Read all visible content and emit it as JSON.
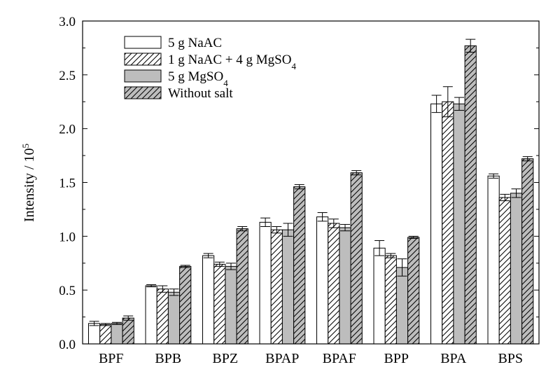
{
  "chart_data": {
    "type": "bar",
    "title": "",
    "xlabel": "",
    "ylabel": "Intensity / 10",
    "ylabel_superscript": "5",
    "ylim": [
      0.0,
      3.0
    ],
    "yticks": [
      "0.0",
      "0.5",
      "1.0",
      "1.5",
      "2.0",
      "2.5",
      "3.0"
    ],
    "grid": false,
    "legend_position": "top-left",
    "categories": [
      "BPF",
      "BPB",
      "BPZ",
      "BPAP",
      "BPAF",
      "BPP",
      "BPA",
      "BPS"
    ],
    "series": [
      {
        "name": "5 g NaAC",
        "legend_parts": [
          {
            "t": "5 g NaAC"
          }
        ],
        "fill": "#ffffff",
        "hatch": false,
        "values": [
          0.19,
          0.54,
          0.82,
          1.13,
          1.18,
          0.89,
          2.23,
          1.56
        ],
        "errors": [
          0.02,
          0.01,
          0.02,
          0.04,
          0.04,
          0.07,
          0.08,
          0.02
        ]
      },
      {
        "name": "1 g NaAC + 4 g MgSO4",
        "legend_parts": [
          {
            "t": "1 g NaAC + 4 g MgSO"
          },
          {
            "t": "4",
            "sub": true
          }
        ],
        "fill": "#ffffff",
        "hatch": true,
        "values": [
          0.18,
          0.51,
          0.74,
          1.06,
          1.12,
          0.82,
          2.25,
          1.36
        ],
        "errors": [
          0.01,
          0.03,
          0.02,
          0.03,
          0.04,
          0.02,
          0.14,
          0.03
        ]
      },
      {
        "name": "5 g MgSO4",
        "legend_parts": [
          {
            "t": "5 g MgSO"
          },
          {
            "t": "4",
            "sub": true
          }
        ],
        "fill": "#bdbdbd",
        "hatch": false,
        "values": [
          0.19,
          0.48,
          0.72,
          1.06,
          1.08,
          0.71,
          2.23,
          1.4
        ],
        "errors": [
          0.01,
          0.03,
          0.03,
          0.06,
          0.03,
          0.08,
          0.06,
          0.04
        ]
      },
      {
        "name": "Without salt",
        "legend_parts": [
          {
            "t": "Without salt"
          }
        ],
        "fill": "#bdbdbd",
        "hatch": true,
        "values": [
          0.24,
          0.72,
          1.07,
          1.46,
          1.59,
          0.99,
          2.77,
          1.72
        ],
        "errors": [
          0.02,
          0.01,
          0.02,
          0.02,
          0.02,
          0.01,
          0.06,
          0.02
        ]
      }
    ]
  }
}
